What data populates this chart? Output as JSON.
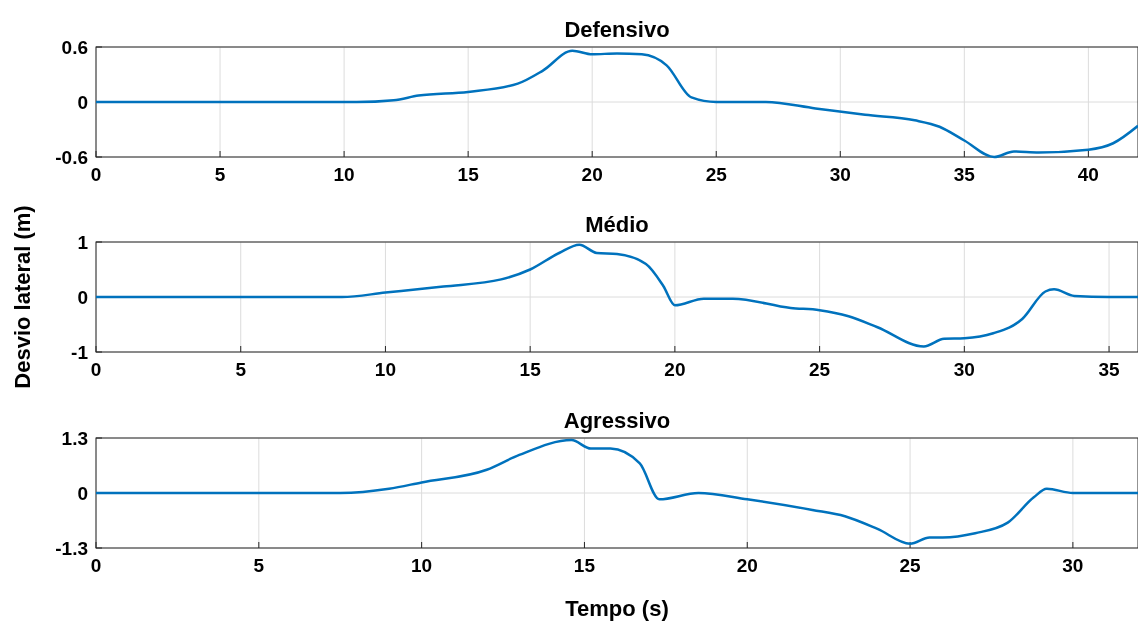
{
  "chart_data": [
    {
      "type": "line",
      "title": "Defensivo",
      "xlim": [
        0,
        42
      ],
      "xticks": [
        0,
        5,
        10,
        15,
        20,
        25,
        30,
        35,
        40
      ],
      "ylim": [
        -0.6,
        0.6
      ],
      "yticks": [
        -0.6,
        0,
        0.6
      ],
      "grid": true,
      "series": [
        {
          "color": "#0072bd",
          "x": [
            0,
            10.5,
            12,
            13,
            15,
            17,
            18,
            19.2,
            20,
            21,
            22,
            23,
            24,
            25,
            27,
            29,
            31,
            33,
            34,
            35,
            36.2,
            37,
            38,
            40,
            41,
            42
          ],
          "values": [
            0,
            0,
            0.02,
            0.07,
            0.11,
            0.2,
            0.34,
            0.56,
            0.52,
            0.53,
            0.52,
            0.4,
            0.05,
            0,
            0,
            -0.07,
            -0.14,
            -0.2,
            -0.27,
            -0.42,
            -0.6,
            -0.54,
            -0.55,
            -0.52,
            -0.45,
            -0.26
          ]
        }
      ]
    },
    {
      "type": "line",
      "title": "Médio",
      "ylabel": "Desvio lateral (m)",
      "xlim": [
        0,
        36
      ],
      "xticks": [
        0,
        5,
        10,
        15,
        20,
        25,
        30,
        35
      ],
      "ylim": [
        -1,
        1
      ],
      "yticks": [
        -1,
        0,
        1
      ],
      "grid": true,
      "series": [
        {
          "color": "#0072bd",
          "x": [
            0,
            8.5,
            10,
            12,
            14,
            15,
            16,
            16.7,
            17.3,
            18,
            19,
            19.6,
            20,
            21,
            22,
            24,
            25,
            26,
            27,
            28.6,
            29.3,
            30,
            31,
            32,
            32.8,
            33.1,
            33.8,
            35,
            36
          ],
          "values": [
            0,
            0,
            0.08,
            0.19,
            0.32,
            0.5,
            0.8,
            0.95,
            0.8,
            0.78,
            0.6,
            0.2,
            -0.15,
            -0.03,
            -0.03,
            -0.2,
            -0.24,
            -0.35,
            -0.55,
            -0.9,
            -0.76,
            -0.75,
            -0.66,
            -0.4,
            0.1,
            0.14,
            0.02,
            0,
            0
          ]
        }
      ]
    },
    {
      "type": "line",
      "title": "Agressivo",
      "xlabel": "Tempo (s)",
      "xlim": [
        0,
        32
      ],
      "xticks": [
        0,
        5,
        10,
        15,
        20,
        25,
        30
      ],
      "ylim": [
        -1.3,
        1.3
      ],
      "yticks": [
        -1.3,
        0,
        1.3
      ],
      "grid": true,
      "series": [
        {
          "color": "#0072bd",
          "x": [
            0,
            7.5,
            9,
            10,
            12,
            13,
            14.6,
            15.2,
            15.8,
            16.7,
            17.3,
            18.5,
            20,
            22,
            23,
            24,
            25,
            25.6,
            26,
            27,
            28,
            28.8,
            29.2,
            30,
            32
          ],
          "values": [
            0,
            0,
            0.1,
            0.25,
            0.55,
            0.9,
            1.25,
            1.05,
            1.05,
            0.7,
            -0.15,
            0,
            -0.15,
            -0.4,
            -0.55,
            -0.85,
            -1.2,
            -1.05,
            -1.05,
            -0.95,
            -0.7,
            -0.1,
            0.1,
            0,
            0
          ]
        }
      ]
    }
  ]
}
